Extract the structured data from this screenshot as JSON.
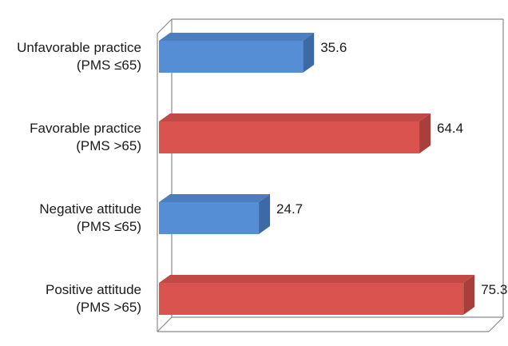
{
  "chart_data": {
    "type": "bar",
    "orientation": "horizontal",
    "style": "3d",
    "categories": [
      [
        "Unfavorable practice",
        "(PMS ≤65)"
      ],
      [
        "Favorable practice",
        "(PMS >65)"
      ],
      [
        "Negative attitude",
        "(PMS ≤65)"
      ],
      [
        "Positive attitude",
        "(PMS >65)"
      ]
    ],
    "values": [
      35.6,
      64.4,
      24.7,
      75.3
    ],
    "value_labels": [
      "35.6",
      "64.4",
      "24.7",
      "75.3"
    ],
    "xlim": [
      0,
      80
    ],
    "grid": false,
    "legend": "none",
    "title": "",
    "xlabel": "",
    "ylabel": "",
    "bar_colors": [
      "#558ed5",
      "#d9534f",
      "#558ed5",
      "#d9534f"
    ],
    "bar_top_colors": [
      "#4a7ebf",
      "#c24a46",
      "#4a7ebf",
      "#c24a46"
    ],
    "bar_side_colors": [
      "#3b6aa6",
      "#a83f3b",
      "#3b6aa6",
      "#a83f3b"
    ]
  }
}
